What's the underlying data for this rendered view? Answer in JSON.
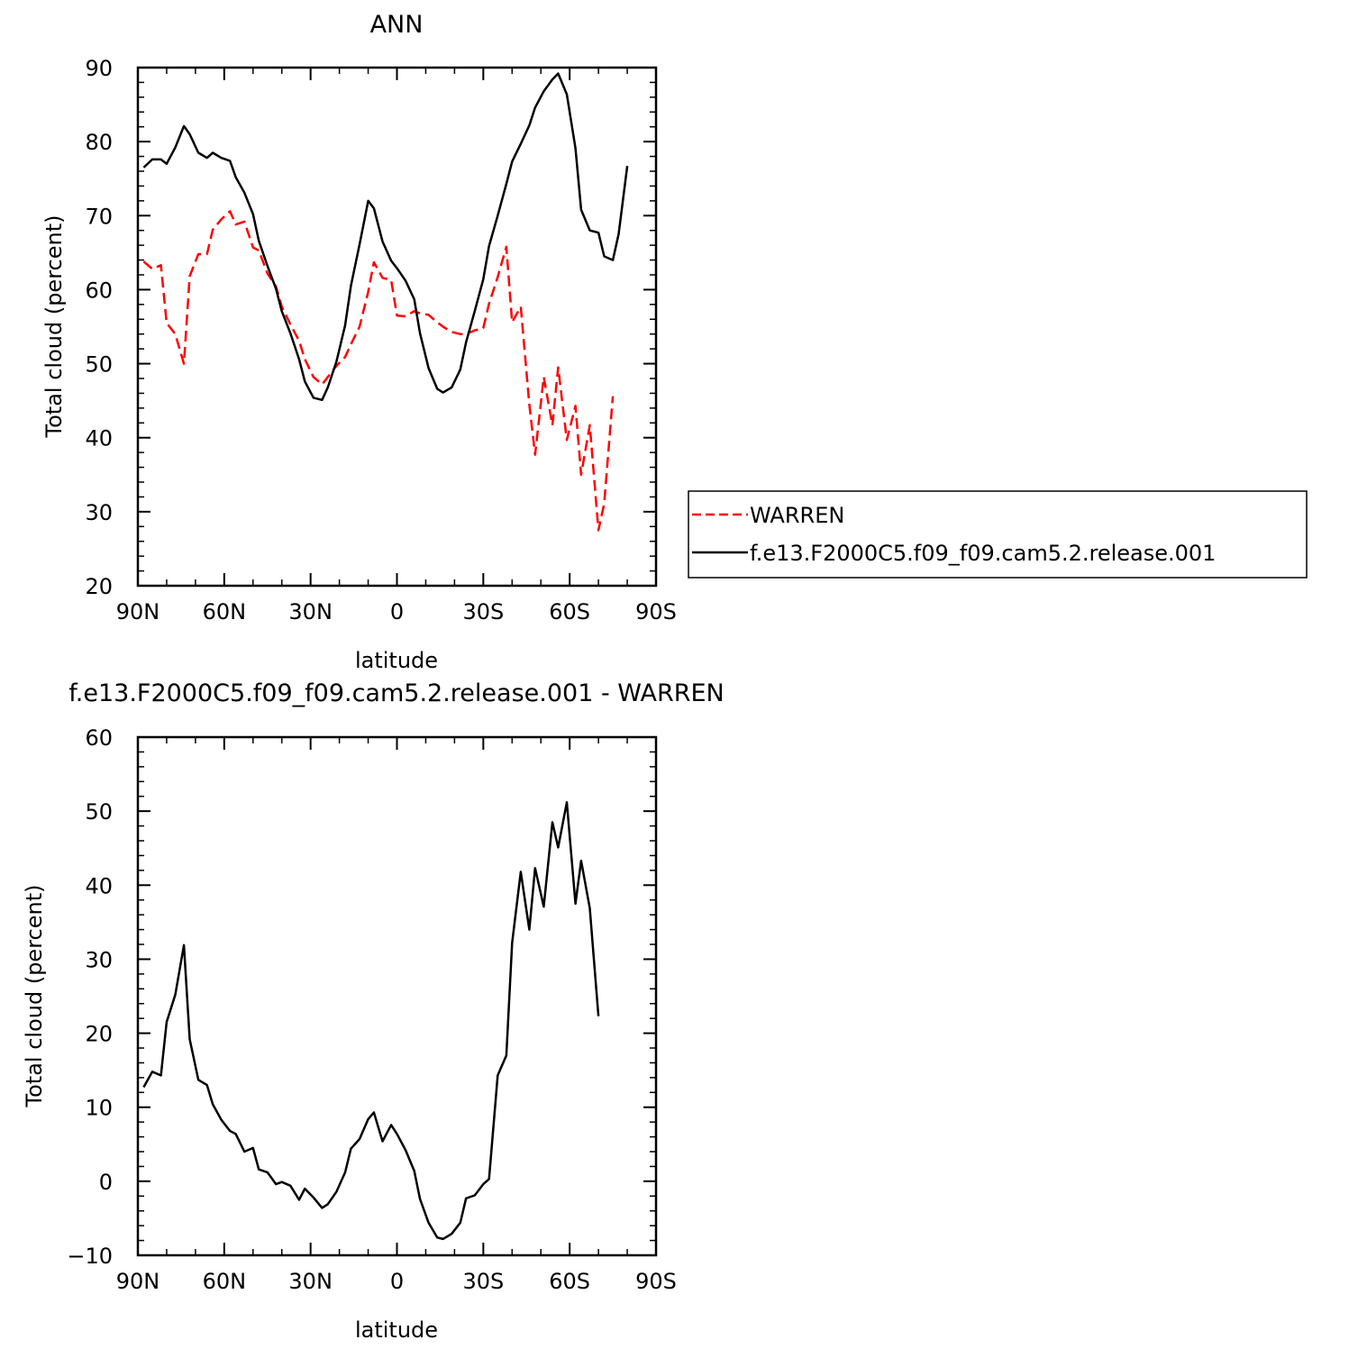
{
  "chart_data": [
    {
      "type": "line",
      "title": "ANN",
      "xlabel": "latitude",
      "ylabel": "Total cloud (percent)",
      "xlim": [
        90,
        -90
      ],
      "ylim": [
        20,
        90
      ],
      "yticks": [
        "20",
        "30",
        "40",
        "50",
        "60",
        "70",
        "80",
        "90"
      ],
      "xtick_values": [
        90,
        60,
        30,
        0,
        -30,
        -60,
        -90
      ],
      "xtick_labels": [
        "90N",
        "60N",
        "30N",
        "0",
        "30S",
        "60S",
        "90S"
      ],
      "grid": false,
      "legend_position": "right",
      "series": [
        {
          "name": "WARREN",
          "color": "#ff0000",
          "dash": "dashed",
          "x": [
            88,
            85,
            82,
            80,
            77,
            74,
            72,
            69,
            66,
            64,
            61,
            58,
            56,
            53,
            50,
            48,
            45,
            42,
            40,
            37,
            34,
            32,
            29,
            26,
            24,
            21,
            18,
            16,
            13,
            10,
            8,
            5,
            2,
            0,
            -3,
            -6,
            -8,
            -11,
            -14,
            -16,
            -19,
            -22,
            -24,
            -27,
            -30,
            -32,
            -35,
            -38,
            -40,
            -43,
            -46,
            -48,
            -51,
            -54,
            -56,
            -59,
            -62,
            -64,
            -67,
            -70,
            -72,
            -75,
            -77
          ],
          "y": [
            63.8,
            62.8,
            63.3,
            55.5,
            54,
            50,
            61.8,
            64.8,
            64.8,
            68.1,
            69.5,
            70.6,
            68.8,
            69.2,
            65.7,
            65.3,
            62.2,
            60.4,
            57.7,
            55.3,
            53.1,
            50.6,
            48.2,
            47.2,
            48.2,
            49.7,
            50.9,
            52.6,
            55,
            59.7,
            63.7,
            61.6,
            61.3,
            56.5,
            56.4,
            57.1,
            56.8,
            56.6,
            55.6,
            55,
            54.3,
            54,
            54,
            54.5,
            54.8,
            58.1,
            61.7,
            65.8,
            55.6,
            57.7,
            44.5,
            37.7,
            48.2,
            41.7,
            49.5,
            39.7,
            44.3,
            35,
            41.7,
            27.5,
            31.1,
            45.6,
            null
          ]
        },
        {
          "name": "f.e13.F2000C5.f09_f09.cam5.2.release.001",
          "color": "#000000",
          "dash": "solid",
          "x": [
            88,
            85,
            82,
            80,
            77,
            74,
            72,
            69,
            66,
            64,
            61,
            58,
            56,
            53,
            50,
            48,
            45,
            42,
            40,
            37,
            34,
            32,
            29,
            26,
            24,
            21,
            18,
            16,
            13,
            10,
            8,
            5,
            2,
            0,
            -3,
            -6,
            -8,
            -11,
            -14,
            -16,
            -19,
            -22,
            -24,
            -27,
            -30,
            -32,
            -35,
            -38,
            -40,
            -43,
            -46,
            -48,
            -51,
            -54,
            -56,
            -59,
            -62,
            -64,
            -67,
            -70,
            -72,
            -75,
            -77,
            -80,
            -83,
            -85,
            -88
          ],
          "y": [
            76.5,
            77.6,
            77.6,
            77,
            79.2,
            82.1,
            81,
            78.5,
            77.8,
            78.5,
            77.8,
            77.4,
            75.2,
            73.1,
            70.2,
            66.6,
            63.2,
            60.1,
            57.1,
            54.1,
            50.6,
            47.6,
            45.4,
            45.1,
            46.8,
            50.3,
            55.2,
            60.5,
            66.1,
            72,
            71,
            66.5,
            63.9,
            62.9,
            61.2,
            58.7,
            54.1,
            49.4,
            46.6,
            46.1,
            46.8,
            49.2,
            52.9,
            57.1,
            61.4,
            65.9,
            70,
            74.3,
            77.3,
            79.7,
            82.2,
            84.6,
            86.8,
            88.4,
            89.2,
            86.4,
            79.1,
            70.8,
            68,
            67.7,
            64.5,
            64,
            67.5,
            76.7,
            null,
            null,
            null
          ]
        }
      ]
    },
    {
      "type": "line",
      "title": "f.e13.F2000C5.f09_f09.cam5.2.release.001 - WARREN",
      "xlabel": "latitude",
      "ylabel": "Total cloud (percent)",
      "xlim": [
        90,
        -90
      ],
      "ylim": [
        -10,
        60
      ],
      "yticks": [
        "−10",
        "0",
        "10",
        "20",
        "30",
        "40",
        "50",
        "60"
      ],
      "xtick_values": [
        90,
        60,
        30,
        0,
        -30,
        -60,
        -90
      ],
      "xtick_labels": [
        "90N",
        "60N",
        "30N",
        "0",
        "30S",
        "60S",
        "90S"
      ],
      "grid": false,
      "series": [
        {
          "color": "#000000",
          "dash": "solid",
          "x": [
            88,
            85,
            82,
            80,
            77,
            74,
            72,
            69,
            66,
            64,
            61,
            58,
            56,
            53,
            50,
            48,
            45,
            42,
            40,
            37,
            34,
            32,
            29,
            26,
            24,
            21,
            18,
            16,
            13,
            10,
            8,
            5,
            2,
            0,
            -3,
            -6,
            -8,
            -11,
            -14,
            -16,
            -19,
            -22,
            -24,
            -27,
            -30,
            -32,
            -35,
            -38,
            -40,
            -43,
            -46,
            -48,
            -51,
            -54,
            -56,
            -59,
            -62,
            -64,
            -67,
            -70,
            -72,
            -75,
            -77
          ],
          "y": [
            12.7,
            14.8,
            14.3,
            21.5,
            25.2,
            31.9,
            19.2,
            13.7,
            13,
            10.4,
            8.3,
            6.8,
            6.4,
            4,
            4.5,
            1.6,
            1.2,
            -0.4,
            -0.1,
            -0.6,
            -2.5,
            -1,
            -2.2,
            -3.6,
            -3.1,
            -1.4,
            1.2,
            4.4,
            5.7,
            8.4,
            9.3,
            5.4,
            7.6,
            6.4,
            4.2,
            1.4,
            -2.4,
            -5.6,
            -7.6,
            -7.8,
            -7.1,
            -5.6,
            -2.3,
            -1.9,
            -0.4,
            0.3,
            14.3,
            17,
            32.2,
            41.8,
            34,
            42.3,
            37.1,
            48.5,
            45.1,
            51.2,
            37.5,
            43.3,
            36.9,
            22.3,
            null,
            null,
            null
          ]
        }
      ]
    }
  ]
}
